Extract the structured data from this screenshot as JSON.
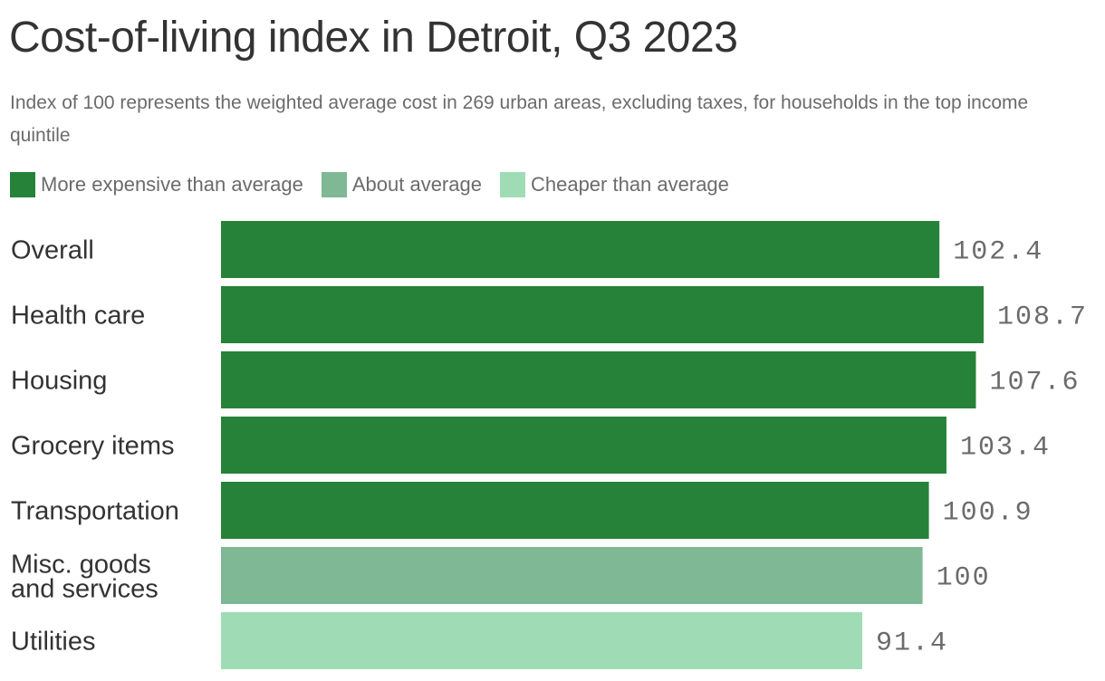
{
  "chart_data": {
    "type": "bar",
    "orientation": "horizontal",
    "title": "Cost-of-living index in Detroit, Q3 2023",
    "subtitle": "Index of 100 represents the weighted average cost in 269 urban areas, excluding taxes, for households in the top income quintile",
    "legend": [
      {
        "label": "More expensive than average",
        "color": "#268238"
      },
      {
        "label": "About average",
        "color": "#7eb894"
      },
      {
        "label": "Cheaper than average",
        "color": "#9fdcb5"
      }
    ],
    "legend_position": "top-left",
    "grid": false,
    "categories": [
      "Overall",
      "Health care",
      "Housing",
      "Grocery items",
      "Transportation",
      "Misc. goods and services",
      "Utilities"
    ],
    "category_lines": [
      [
        "Overall"
      ],
      [
        "Health care"
      ],
      [
        "Housing"
      ],
      [
        "Grocery items"
      ],
      [
        "Transportation"
      ],
      [
        "Misc. goods",
        "and services"
      ],
      [
        "Utilities"
      ]
    ],
    "values": [
      102.4,
      108.7,
      107.6,
      103.4,
      100.9,
      100,
      91.4
    ],
    "value_labels": [
      "102.4",
      "108.7",
      "107.6",
      "103.4",
      "100.9",
      "100",
      "91.4"
    ],
    "bar_colors": [
      "#268238",
      "#268238",
      "#268238",
      "#268238",
      "#268238",
      "#7eb894",
      "#9fdcb5"
    ],
    "xlim": [
      0,
      108.7
    ]
  }
}
